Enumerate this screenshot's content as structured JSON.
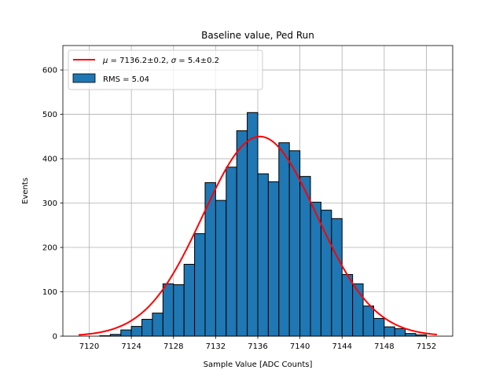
{
  "chart_data": {
    "type": "bar",
    "title": "Baseline value, Ped Run",
    "xlabel": "Sample Value [ADC Counts]",
    "ylabel": "Events",
    "xlim": [
      7117.5,
      7154.5
    ],
    "ylim": [
      0,
      655
    ],
    "xticks": [
      7120,
      7124,
      7128,
      7132,
      7136,
      7140,
      7144,
      7148,
      7152
    ],
    "yticks": [
      0,
      100,
      200,
      300,
      400,
      500,
      600
    ],
    "grid": true,
    "legend_position": "top-left",
    "histogram": {
      "name": "RMS = 5.04",
      "bar_color": "#1f77b4",
      "bin_width": 1,
      "bins": [
        {
          "left": 7121,
          "count": 1
        },
        {
          "left": 7122,
          "count": 4
        },
        {
          "left": 7123,
          "count": 14
        },
        {
          "left": 7124,
          "count": 22
        },
        {
          "left": 7125,
          "count": 38
        },
        {
          "left": 7126,
          "count": 52
        },
        {
          "left": 7127,
          "count": 118
        },
        {
          "left": 7128,
          "count": 116
        },
        {
          "left": 7129,
          "count": 162
        },
        {
          "left": 7130,
          "count": 231
        },
        {
          "left": 7131,
          "count": 346
        },
        {
          "left": 7132,
          "count": 306
        },
        {
          "left": 7133,
          "count": 381
        },
        {
          "left": 7134,
          "count": 463
        },
        {
          "left": 7135,
          "count": 504
        },
        {
          "left": 7136,
          "count": 366
        },
        {
          "left": 7137,
          "count": 348
        },
        {
          "left": 7138,
          "count": 436
        },
        {
          "left": 7139,
          "count": 418
        },
        {
          "left": 7140,
          "count": 360
        },
        {
          "left": 7141,
          "count": 302
        },
        {
          "left": 7142,
          "count": 284
        },
        {
          "left": 7143,
          "count": 265
        },
        {
          "left": 7144,
          "count": 139
        },
        {
          "left": 7145,
          "count": 118
        },
        {
          "left": 7146,
          "count": 68
        },
        {
          "left": 7147,
          "count": 40
        },
        {
          "left": 7148,
          "count": 21
        },
        {
          "left": 7149,
          "count": 17
        },
        {
          "left": 7150,
          "count": 6
        },
        {
          "left": 7151,
          "count": 3
        }
      ]
    },
    "fit": {
      "type": "gaussian",
      "mu": 7136.2,
      "sigma": 5.4,
      "amplitude": 450,
      "x_range": [
        7119,
        7153
      ],
      "color": "#ff0000",
      "legend": {
        "mu_symbol": "μ",
        "sigma_symbol": "σ",
        "mu_text": " = 7136.2±0.2, ",
        "sigma_text": " = 5.4±0.2"
      }
    }
  }
}
